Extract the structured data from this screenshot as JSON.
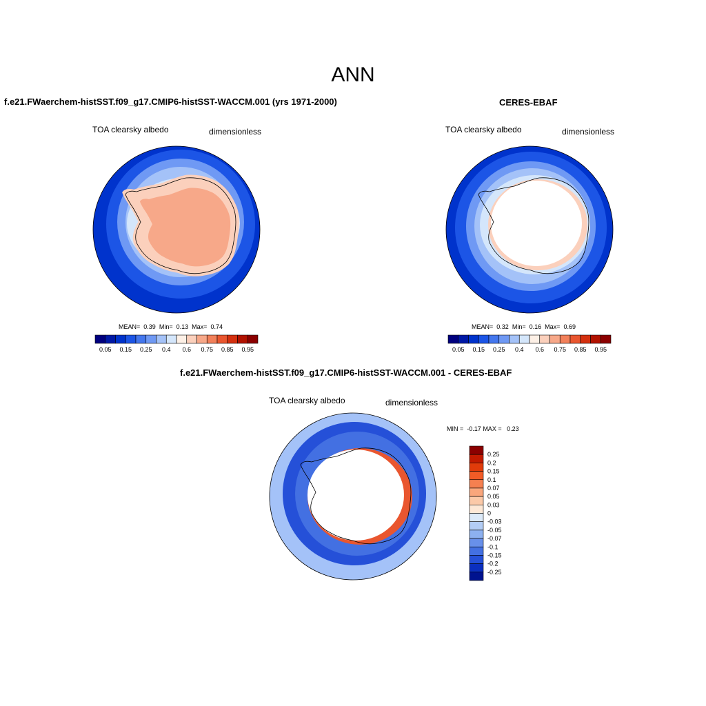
{
  "title": "ANN",
  "panels": [
    {
      "title": "f.e21.FWaerchem-histSST.f09_g17.CMIP6-histSST-WACCM.001 (yrs 1971-2000)",
      "variable": "TOA clearsky albedo",
      "units": "dimensionless",
      "stats": {
        "mean_label": "MEAN=",
        "mean": "0.39",
        "min_label": "Min=",
        "min": "0.13",
        "max_label": "Max=",
        "max": "0.74"
      }
    },
    {
      "title": "CERES-EBAF",
      "variable": "TOA clearsky albedo",
      "units": "dimensionless",
      "stats": {
        "mean_label": "MEAN=",
        "mean": "0.32",
        "min_label": "Min=",
        "min": "0.16",
        "max_label": "Max=",
        "max": "0.69"
      }
    },
    {
      "title": "f.e21.FWaerchem-histSST.f09_g17.CMIP6-histSST-WACCM.001 - CERES-EBAF",
      "variable": "TOA clearsky albedo",
      "units": "dimensionless",
      "stats": {
        "min_label": "MIN =",
        "min": "-0.17",
        "max_label": "MAX =",
        "max": "0.23"
      }
    }
  ],
  "colorbar_main": {
    "colors": [
      "#00007f",
      "#0019a6",
      "#0033cc",
      "#1c55e6",
      "#4477ee",
      "#6f99f4",
      "#a4c2f8",
      "#d4e6fb",
      "#fdf0e6",
      "#fbd0bc",
      "#f7a889",
      "#f2805a",
      "#e9562f",
      "#d4300f",
      "#b11200",
      "#8b0000"
    ],
    "tick_labels": [
      "0.05",
      "0.15",
      "0.25",
      "0.4",
      "0.6",
      "0.75",
      "0.85",
      "0.95"
    ]
  },
  "colorbar_diff": {
    "colors": [
      "#8b0000",
      "#c21a00",
      "#e13b0a",
      "#f25b26",
      "#f58050",
      "#f9a67c",
      "#fbc9a8",
      "#fde8d6",
      "#dceaf9",
      "#b3cdf5",
      "#8db1f0",
      "#6890ea",
      "#4370e2",
      "#2550d8",
      "#0b2fbf",
      "#00138f"
    ],
    "tick_labels": [
      "0.25",
      "0.2",
      "0.15",
      "0.1",
      "0.07",
      "0.05",
      "0.03",
      "0",
      "-0.03",
      "-0.05",
      "-0.07",
      "-0.1",
      "-0.15",
      "-0.2",
      "-0.25"
    ]
  },
  "map_colors": {
    "ocean_deep": "#0033cc",
    "ocean_mid": "#1c55e6",
    "ocean_light": "#6f99f4",
    "ocean_pale": "#a4c2f8",
    "sea_ice": "#d4e6fb",
    "ice_edge": "#fbd0bc",
    "ice_sheet": "#f7a889",
    "diff_positive": "#e9562f",
    "diff_neg_strong": "#2550d8",
    "diff_neg_light": "#a4c2f8"
  }
}
